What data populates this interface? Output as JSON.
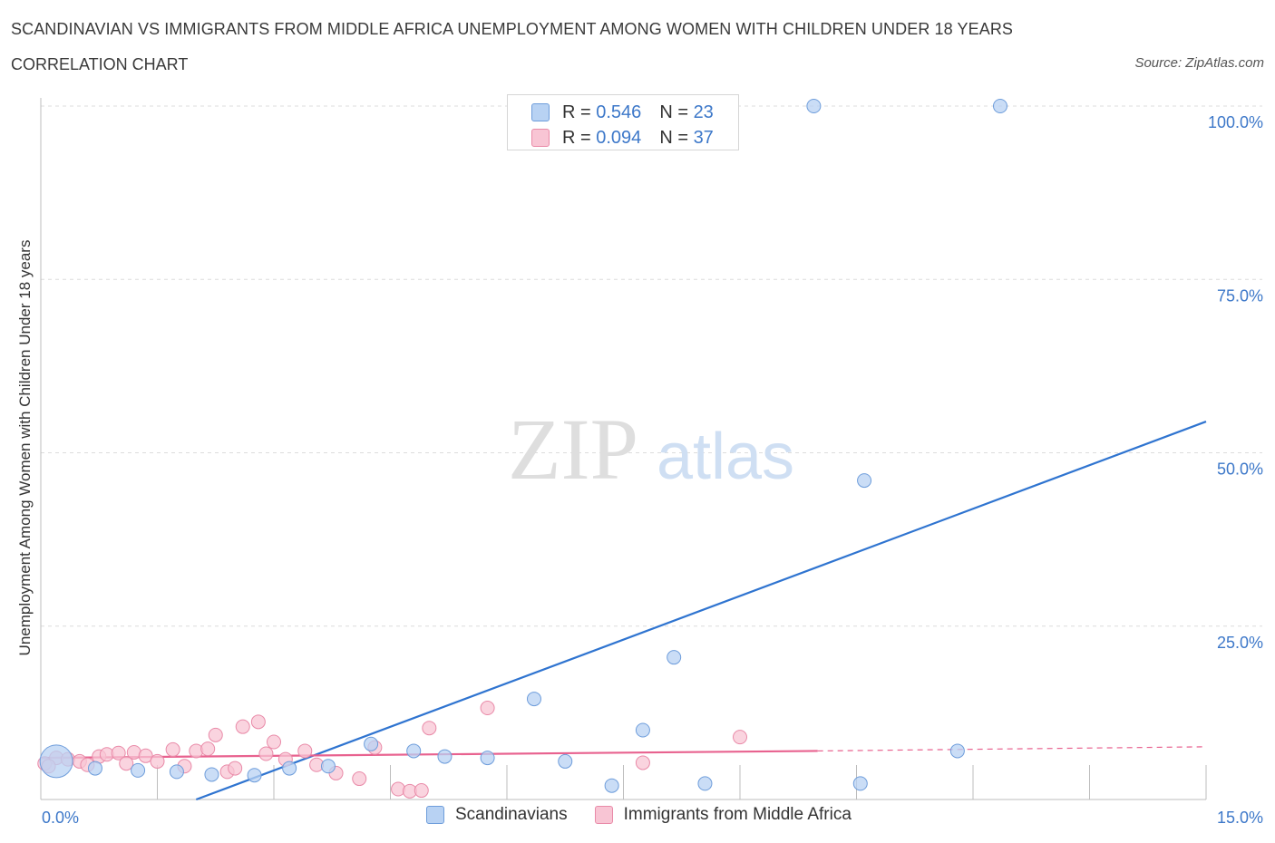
{
  "header": {
    "title": "SCANDINAVIAN VS IMMIGRANTS FROM MIDDLE AFRICA UNEMPLOYMENT AMONG WOMEN WITH CHILDREN UNDER 18 YEARS",
    "subtitle": "CORRELATION CHART",
    "source": "Source: ZipAtlas.com"
  },
  "watermark": {
    "zip": "ZIP",
    "atlas": "atlas"
  },
  "colors": {
    "scandinavian_fill": "#b8d2f3",
    "scandinavian_stroke": "#6e9ddb",
    "scandinavian_line": "#2f74d0",
    "africa_fill": "#f8c5d4",
    "africa_stroke": "#e98aa8",
    "africa_line": "#e8628f",
    "axis_label": "#3d78c9"
  },
  "legend": {
    "r_label": "R =",
    "n_label": "N =",
    "rows": [
      {
        "r": "0.546",
        "n": "23"
      },
      {
        "r": "0.094",
        "n": "37"
      }
    ]
  },
  "chart_data": {
    "type": "scatter",
    "xlabel": "",
    "ylabel": "Unemployment Among Women with Children Under 18 years",
    "xlim": [
      0,
      15
    ],
    "ylim": [
      0,
      100
    ],
    "x_tick_labels": [
      "0.0%",
      "15.0%"
    ],
    "y_tick_labels": [
      "100.0%",
      "75.0%",
      "50.0%",
      "25.0%"
    ],
    "y_ticks": [
      100,
      75,
      50,
      25
    ],
    "grid": true,
    "series": [
      {
        "name": "Scandinavians",
        "points": [
          {
            "x": 0.2,
            "y": 5.5,
            "big": true
          },
          {
            "x": 0.7,
            "y": 4.5
          },
          {
            "x": 1.25,
            "y": 4.2
          },
          {
            "x": 1.75,
            "y": 4.0
          },
          {
            "x": 2.2,
            "y": 3.6
          },
          {
            "x": 2.75,
            "y": 3.5
          },
          {
            "x": 3.2,
            "y": 4.5
          },
          {
            "x": 3.7,
            "y": 4.8
          },
          {
            "x": 4.25,
            "y": 8.0
          },
          {
            "x": 4.8,
            "y": 7.0
          },
          {
            "x": 5.2,
            "y": 6.2
          },
          {
            "x": 5.75,
            "y": 6.0
          },
          {
            "x": 6.35,
            "y": 14.5
          },
          {
            "x": 6.75,
            "y": 5.5
          },
          {
            "x": 7.35,
            "y": 2.0
          },
          {
            "x": 7.75,
            "y": 10.0
          },
          {
            "x": 8.15,
            "y": 20.5
          },
          {
            "x": 8.55,
            "y": 2.3
          },
          {
            "x": 9.95,
            "y": 100.0
          },
          {
            "x": 10.6,
            "y": 46.0
          },
          {
            "x": 10.55,
            "y": 2.3
          },
          {
            "x": 11.8,
            "y": 7.0
          },
          {
            "x": 12.35,
            "y": 100.0
          }
        ],
        "trend": {
          "x1": 2.0,
          "y1": 0.0,
          "x2": 15.0,
          "y2": 54.5
        }
      },
      {
        "name": "Immigrants from Middle Africa",
        "points": [
          {
            "x": 0.05,
            "y": 5.2
          },
          {
            "x": 0.2,
            "y": 6.0
          },
          {
            "x": 0.35,
            "y": 5.8
          },
          {
            "x": 0.5,
            "y": 5.5
          },
          {
            "x": 0.6,
            "y": 5.0
          },
          {
            "x": 0.75,
            "y": 6.2
          },
          {
            "x": 0.85,
            "y": 6.5
          },
          {
            "x": 1.0,
            "y": 6.7
          },
          {
            "x": 1.1,
            "y": 5.2
          },
          {
            "x": 1.2,
            "y": 6.8
          },
          {
            "x": 1.35,
            "y": 6.3
          },
          {
            "x": 1.5,
            "y": 5.5
          },
          {
            "x": 1.7,
            "y": 7.2
          },
          {
            "x": 1.85,
            "y": 4.8
          },
          {
            "x": 2.0,
            "y": 7.0
          },
          {
            "x": 2.15,
            "y": 7.3
          },
          {
            "x": 2.25,
            "y": 9.3
          },
          {
            "x": 2.4,
            "y": 4.0
          },
          {
            "x": 2.5,
            "y": 4.5
          },
          {
            "x": 2.6,
            "y": 10.5
          },
          {
            "x": 2.8,
            "y": 11.2
          },
          {
            "x": 2.9,
            "y": 6.6
          },
          {
            "x": 3.0,
            "y": 8.3
          },
          {
            "x": 3.15,
            "y": 5.8
          },
          {
            "x": 3.4,
            "y": 7.0
          },
          {
            "x": 3.55,
            "y": 5.0
          },
          {
            "x": 3.8,
            "y": 3.8
          },
          {
            "x": 4.1,
            "y": 3.0
          },
          {
            "x": 4.3,
            "y": 7.5
          },
          {
            "x": 4.6,
            "y": 1.5
          },
          {
            "x": 4.75,
            "y": 1.2
          },
          {
            "x": 4.9,
            "y": 1.3
          },
          {
            "x": 5.0,
            "y": 10.3
          },
          {
            "x": 5.75,
            "y": 13.2
          },
          {
            "x": 7.75,
            "y": 5.3
          },
          {
            "x": 9.0,
            "y": 9.0
          },
          {
            "x": 0.1,
            "y": 4.8
          }
        ],
        "trend": {
          "x1": 0.0,
          "y1": 6.0,
          "x2": 10.0,
          "y2": 7.0
        },
        "trend_dashed": {
          "x1": 10.0,
          "y1": 7.0,
          "x2": 15.0,
          "y2": 7.6
        }
      }
    ]
  }
}
